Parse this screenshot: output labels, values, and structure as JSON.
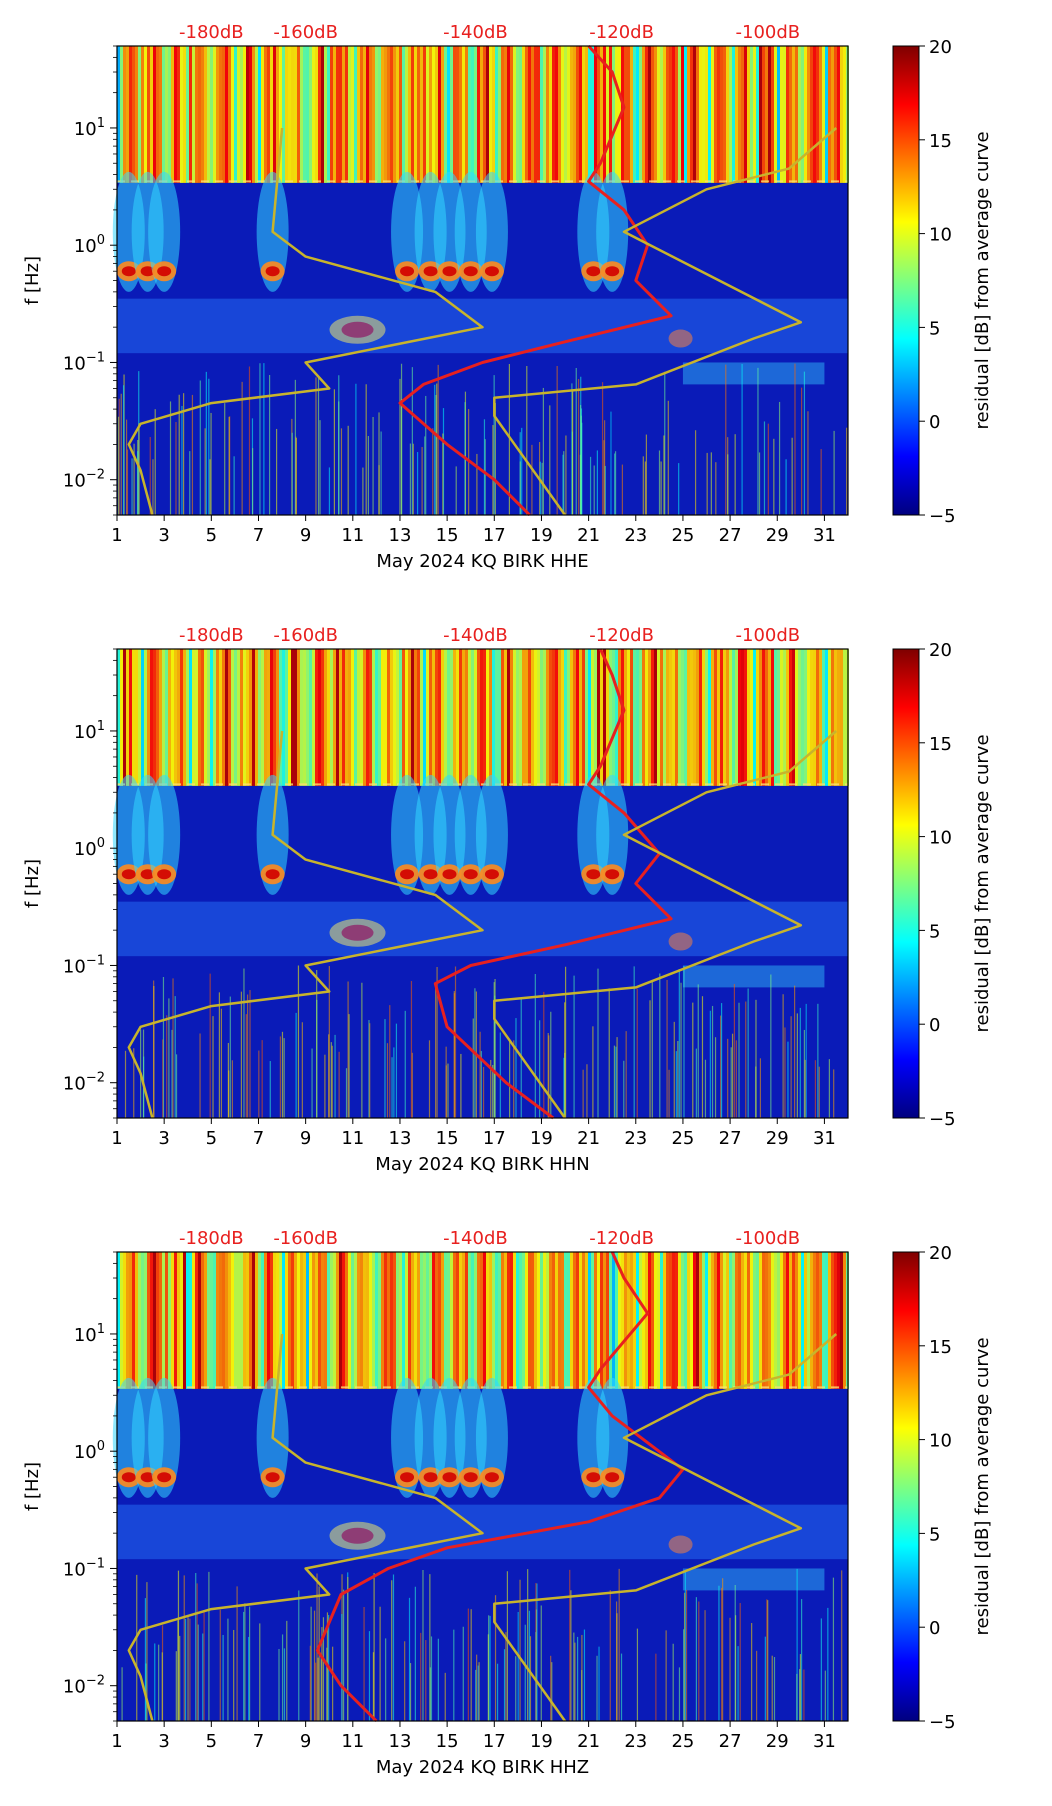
{
  "colors": {
    "noise_curve": "#e8201f",
    "model_lines": "#c8b42c",
    "db_labels": "#e8201f"
  },
  "chart_data": [
    {
      "type": "heatmap",
      "title": "",
      "xlabel": "May 2024 KQ BIRK  HHE",
      "ylabel": "f [Hz]",
      "xlim": [
        1,
        32
      ],
      "ylim": [
        0.005,
        50
      ],
      "yscale": "log",
      "x_ticks": [
        "1",
        "3",
        "5",
        "7",
        "9",
        "11",
        "13",
        "15",
        "17",
        "19",
        "21",
        "23",
        "25",
        "27",
        "29",
        "31"
      ],
      "y_ticks": [
        "10^-2",
        "10^-1",
        "10^0",
        "10^1"
      ],
      "top_axis_labels": [
        "-180dB",
        "-160dB",
        "-140dB",
        "-120dB",
        "-100dB"
      ],
      "colorbar": {
        "label": "residual [dB] from average curve",
        "min": -5,
        "max": 20,
        "ticks": [
          "−5",
          "0",
          "5",
          "10",
          "15",
          "20"
        ]
      },
      "series": [
        {
          "name": "noise-curve",
          "color": "red",
          "points": [
            [
              21.0,
              50
            ],
            [
              22.0,
              30
            ],
            [
              22.5,
              15
            ],
            [
              21.5,
              5
            ],
            [
              21.0,
              3.5
            ],
            [
              22.5,
              2
            ],
            [
              23.5,
              1
            ],
            [
              23.0,
              0.5
            ],
            [
              24.5,
              0.25
            ],
            [
              20.0,
              0.15
            ],
            [
              16.5,
              0.1
            ],
            [
              14.0,
              0.065
            ],
            [
              13.0,
              0.045
            ],
            [
              15.0,
              0.02
            ],
            [
              17.0,
              0.01
            ],
            [
              18.5,
              0.005
            ]
          ]
        },
        {
          "name": "nlnm-curve",
          "color": "olive",
          "points": [
            [
              8.0,
              10
            ],
            [
              7.6,
              1.3
            ],
            [
              9.0,
              0.8
            ],
            [
              14.5,
              0.4
            ],
            [
              16.5,
              0.2
            ],
            [
              9.0,
              0.1
            ],
            [
              10.0,
              0.06
            ],
            [
              5.0,
              0.045
            ],
            [
              2.0,
              0.03
            ],
            [
              1.5,
              0.02
            ],
            [
              2.0,
              0.012
            ],
            [
              2.5,
              0.005
            ]
          ]
        },
        {
          "name": "nhnm-curve",
          "color": "olive",
          "points": [
            [
              31.5,
              10
            ],
            [
              29.5,
              4.5
            ],
            [
              26.0,
              3
            ],
            [
              22.5,
              1.3
            ],
            [
              30.0,
              0.22
            ],
            [
              28.0,
              0.16
            ],
            [
              23.0,
              0.065
            ],
            [
              17.0,
              0.05
            ],
            [
              17.0,
              0.035
            ],
            [
              20.0,
              0.005
            ]
          ]
        }
      ]
    },
    {
      "type": "heatmap",
      "title": "",
      "xlabel": "May 2024 KQ BIRK  HHN",
      "ylabel": "f [Hz]",
      "xlim": [
        1,
        32
      ],
      "ylim": [
        0.005,
        50
      ],
      "yscale": "log",
      "x_ticks": [
        "1",
        "3",
        "5",
        "7",
        "9",
        "11",
        "13",
        "15",
        "17",
        "19",
        "21",
        "23",
        "25",
        "27",
        "29",
        "31"
      ],
      "y_ticks": [
        "10^-2",
        "10^-1",
        "10^0",
        "10^1"
      ],
      "top_axis_labels": [
        "-180dB",
        "-160dB",
        "-140dB",
        "-120dB",
        "-100dB"
      ],
      "colorbar": {
        "label": "residual [dB] from average curve",
        "min": -5,
        "max": 20,
        "ticks": [
          "−5",
          "0",
          "5",
          "10",
          "15",
          "20"
        ]
      },
      "series": [
        {
          "name": "noise-curve",
          "color": "red",
          "points": [
            [
              21.5,
              50
            ],
            [
              22.0,
              30
            ],
            [
              22.5,
              15
            ],
            [
              21.5,
              5
            ],
            [
              21.0,
              3.5
            ],
            [
              22.5,
              2
            ],
            [
              24.0,
              0.9
            ],
            [
              23.0,
              0.5
            ],
            [
              24.5,
              0.25
            ],
            [
              20.0,
              0.15
            ],
            [
              16.0,
              0.1
            ],
            [
              14.5,
              0.07
            ],
            [
              15.0,
              0.03
            ],
            [
              17.5,
              0.01
            ],
            [
              19.5,
              0.005
            ]
          ]
        },
        {
          "name": "nlnm-curve",
          "color": "olive",
          "points": [
            [
              8.0,
              10
            ],
            [
              7.6,
              1.3
            ],
            [
              9.0,
              0.8
            ],
            [
              14.5,
              0.4
            ],
            [
              16.5,
              0.2
            ],
            [
              9.0,
              0.1
            ],
            [
              10.0,
              0.06
            ],
            [
              5.0,
              0.045
            ],
            [
              2.0,
              0.03
            ],
            [
              1.5,
              0.02
            ],
            [
              2.0,
              0.012
            ],
            [
              2.5,
              0.005
            ]
          ]
        },
        {
          "name": "nhnm-curve",
          "color": "olive",
          "points": [
            [
              31.5,
              10
            ],
            [
              29.5,
              4.5
            ],
            [
              26.0,
              3
            ],
            [
              22.5,
              1.3
            ],
            [
              30.0,
              0.22
            ],
            [
              28.0,
              0.16
            ],
            [
              23.0,
              0.065
            ],
            [
              17.0,
              0.05
            ],
            [
              17.0,
              0.035
            ],
            [
              20.0,
              0.005
            ]
          ]
        }
      ]
    },
    {
      "type": "heatmap",
      "title": "",
      "xlabel": "May 2024 KQ BIRK  HHZ",
      "ylabel": "f [Hz]",
      "xlim": [
        1,
        32
      ],
      "ylim": [
        0.005,
        50
      ],
      "yscale": "log",
      "x_ticks": [
        "1",
        "3",
        "5",
        "7",
        "9",
        "11",
        "13",
        "15",
        "17",
        "19",
        "21",
        "23",
        "25",
        "27",
        "29",
        "31"
      ],
      "y_ticks": [
        "10^-2",
        "10^-1",
        "10^0",
        "10^1"
      ],
      "top_axis_labels": [
        "-180dB",
        "-160dB",
        "-140dB",
        "-120dB",
        "-100dB"
      ],
      "colorbar": {
        "label": "residual [dB] from average curve",
        "min": -5,
        "max": 20,
        "ticks": [
          "−5",
          "0",
          "5",
          "10",
          "15",
          "20"
        ]
      },
      "series": [
        {
          "name": "noise-curve",
          "color": "red",
          "points": [
            [
              22.0,
              50
            ],
            [
              22.5,
              30
            ],
            [
              23.5,
              15
            ],
            [
              21.5,
              5
            ],
            [
              21.0,
              3.5
            ],
            [
              22.0,
              2
            ],
            [
              25.0,
              0.7
            ],
            [
              24.0,
              0.4
            ],
            [
              21.0,
              0.25
            ],
            [
              15.0,
              0.15
            ],
            [
              12.5,
              0.1
            ],
            [
              10.5,
              0.06
            ],
            [
              9.5,
              0.02
            ],
            [
              10.5,
              0.01
            ],
            [
              12.0,
              0.005
            ]
          ]
        },
        {
          "name": "nlnm-curve",
          "color": "olive",
          "points": [
            [
              8.0,
              10
            ],
            [
              7.6,
              1.3
            ],
            [
              9.0,
              0.8
            ],
            [
              14.5,
              0.4
            ],
            [
              16.5,
              0.2
            ],
            [
              9.0,
              0.1
            ],
            [
              10.0,
              0.06
            ],
            [
              5.0,
              0.045
            ],
            [
              2.0,
              0.03
            ],
            [
              1.5,
              0.02
            ],
            [
              2.0,
              0.012
            ],
            [
              2.5,
              0.005
            ]
          ]
        },
        {
          "name": "nhnm-curve",
          "color": "olive",
          "points": [
            [
              31.5,
              10
            ],
            [
              29.5,
              4.5
            ],
            [
              26.0,
              3
            ],
            [
              22.5,
              1.3
            ],
            [
              30.0,
              0.22
            ],
            [
              28.0,
              0.16
            ],
            [
              23.0,
              0.065
            ],
            [
              17.0,
              0.05
            ],
            [
              17.0,
              0.035
            ],
            [
              20.0,
              0.005
            ]
          ]
        }
      ]
    }
  ]
}
